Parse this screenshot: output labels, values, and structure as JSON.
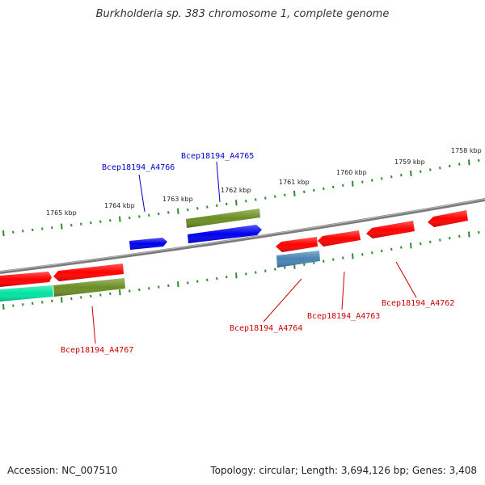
{
  "title": "Burkholderia sp. 383 chromosome 1, complete genome",
  "footer": {
    "accession": "Accession: NC_007510",
    "topology": "Topology: circular; Length: 3,694,126 bp; Genes: 3,408"
  },
  "colors": {
    "backbone": "#7a7a7a",
    "tick": "#2e8b2e",
    "forward_label": "#0000cc",
    "reverse_label": "#cc0000",
    "gene_red": "#ff0000",
    "gene_blue": "#0000ee",
    "gene_olive": "#6b8e23",
    "gene_steel": "#4682b4",
    "gene_teal": "#00e5a0"
  },
  "kbp_labels": [
    "1765 kbp",
    "1764 kbp",
    "1763 kbp",
    "1762 kbp",
    "1761 kbp",
    "1760 kbp",
    "1759 kbp",
    "1758 kbp"
  ],
  "gene_labels": {
    "A4766": "Bcep18194_A4766",
    "A4765": "Bcep18194_A4765",
    "A4767": "Bcep18194_A4767",
    "A4764": "Bcep18194_A4764",
    "A4763": "Bcep18194_A4763",
    "A4762": "Bcep18194_A4762"
  }
}
